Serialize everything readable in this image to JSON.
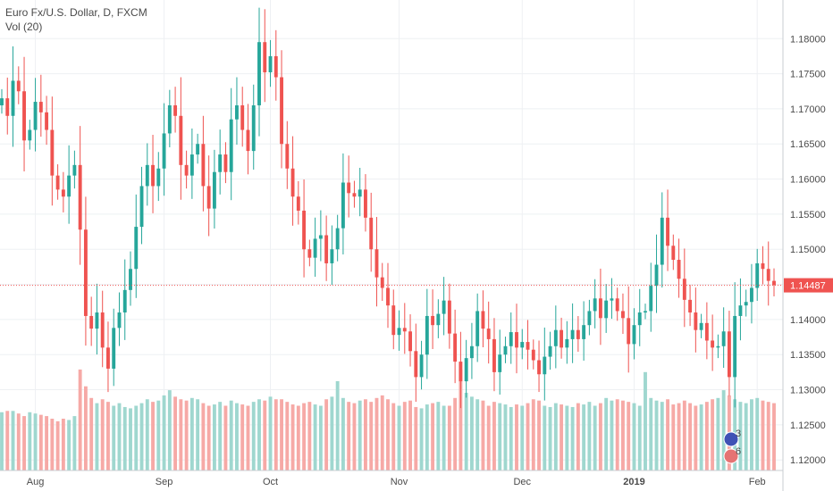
{
  "header": {
    "symbol_title": "Euro Fx/U.S. Dollar, D, FXCM",
    "volume_label": "Vol (20)"
  },
  "colors": {
    "up": "#26a69a",
    "down": "#ef5350",
    "vol_up": "#9fd7cf",
    "vol_down": "#f6a9a6",
    "grid": "#eef0f3",
    "axis_line": "#c8ccd2",
    "last_price": "#ef5350"
  },
  "chart_data": {
    "type": "candlestick",
    "title": "Euro Fx/U.S. Dollar, D, FXCM",
    "indicator": "Vol (20)",
    "ylim": [
      1.1185,
      1.1855
    ],
    "y_ticks": [
      "1.12000",
      "1.12500",
      "1.13000",
      "1.13500",
      "1.14000",
      "1.14500",
      "1.15000",
      "1.15500",
      "1.16000",
      "1.16500",
      "1.17000",
      "1.17500",
      "1.18000"
    ],
    "x_ticks": [
      {
        "label": "Aug",
        "index": 6
      },
      {
        "label": "Sep",
        "index": 29
      },
      {
        "label": "Oct",
        "index": 48
      },
      {
        "label": "Nov",
        "index": 71
      },
      {
        "label": "Dec",
        "index": 93
      },
      {
        "label": "2019",
        "index": 113
      },
      {
        "label": "Feb",
        "index": 135
      }
    ],
    "last_price": "1.14487",
    "last_price_value": 1.14487,
    "closes": [
      1.1715,
      1.169,
      1.174,
      1.1725,
      1.1655,
      1.167,
      1.171,
      1.1695,
      1.167,
      1.1605,
      1.1585,
      1.1575,
      1.1605,
      1.162,
      1.1528,
      1.1405,
      1.1387,
      1.141,
      1.136,
      1.133,
      1.1388,
      1.141,
      1.1442,
      1.1472,
      1.1532,
      1.159,
      1.162,
      1.159,
      1.1615,
      1.1665,
      1.1705,
      1.169,
      1.162,
      1.1605,
      1.1635,
      1.165,
      1.159,
      1.1558,
      1.161,
      1.1635,
      1.161,
      1.1685,
      1.1705,
      1.167,
      1.164,
      1.1705,
      1.1795,
      1.1752,
      1.1775,
      1.1745,
      1.165,
      1.1615,
      1.1575,
      1.1555,
      1.15,
      1.1488,
      1.1515,
      1.152,
      1.148,
      1.15,
      1.153,
      1.1595,
      1.158,
      1.1575,
      1.1585,
      1.1545,
      1.15,
      1.146,
      1.1445,
      1.142,
      1.1378,
      1.1388,
      1.1383,
      1.1355,
      1.1318,
      1.135,
      1.1405,
      1.1392,
      1.1408,
      1.1427,
      1.138,
      1.134,
      1.1312,
      1.1345,
      1.1362,
      1.1412,
      1.1387,
      1.1372,
      1.1325,
      1.135,
      1.1362,
      1.1382,
      1.136,
      1.1368,
      1.1357,
      1.1342,
      1.1322,
      1.1347,
      1.1362,
      1.1385,
      1.136,
      1.1372,
      1.1385,
      1.1372,
      1.1392,
      1.1412,
      1.143,
      1.1402,
      1.1427,
      1.143,
      1.1412,
      1.1402,
      1.1365,
      1.1392,
      1.141,
      1.1412,
      1.1448,
      1.1478,
      1.1545,
      1.1505,
      1.1485,
      1.1458,
      1.1428,
      1.141,
      1.1385,
      1.1395,
      1.137,
      1.136,
      1.1362,
      1.1383,
      1.1318,
      1.1405,
      1.142,
      1.1425,
      1.1445,
      1.148,
      1.1472,
      1.1455,
      1.1449
    ],
    "volumes": [
      0.45,
      0.46,
      0.46,
      0.44,
      0.42,
      0.45,
      0.44,
      0.43,
      0.42,
      0.4,
      0.38,
      0.4,
      0.39,
      0.42,
      0.78,
      0.65,
      0.56,
      0.52,
      0.55,
      0.53,
      0.5,
      0.52,
      0.49,
      0.48,
      0.5,
      0.52,
      0.55,
      0.53,
      0.54,
      0.58,
      0.62,
      0.57,
      0.55,
      0.54,
      0.56,
      0.55,
      0.52,
      0.5,
      0.51,
      0.53,
      0.5,
      0.54,
      0.52,
      0.51,
      0.5,
      0.53,
      0.55,
      0.54,
      0.57,
      0.55,
      0.55,
      0.53,
      0.51,
      0.5,
      0.52,
      0.53,
      0.51,
      0.5,
      0.55,
      0.57,
      0.69,
      0.56,
      0.53,
      0.52,
      0.54,
      0.55,
      0.53,
      0.56,
      0.58,
      0.55,
      0.52,
      0.5,
      0.53,
      0.54,
      0.49,
      0.48,
      0.51,
      0.52,
      0.53,
      0.5,
      0.5,
      0.56,
      0.78,
      0.6,
      0.57,
      0.55,
      0.54,
      0.5,
      0.53,
      0.52,
      0.51,
      0.49,
      0.51,
      0.5,
      0.52,
      0.55,
      0.54,
      0.5,
      0.49,
      0.52,
      0.51,
      0.5,
      0.49,
      0.52,
      0.51,
      0.53,
      0.5,
      0.52,
      0.56,
      0.54,
      0.55,
      0.54,
      0.53,
      0.52,
      0.5,
      0.76,
      0.56,
      0.54,
      0.53,
      0.55,
      0.51,
      0.52,
      0.54,
      0.52,
      0.5,
      0.51,
      0.53,
      0.55,
      0.56,
      0.62,
      0.58,
      0.55,
      0.53,
      0.52,
      0.55,
      0.56,
      0.54,
      0.53,
      0.52
    ],
    "volume_badges": [
      "3",
      "6"
    ]
  }
}
